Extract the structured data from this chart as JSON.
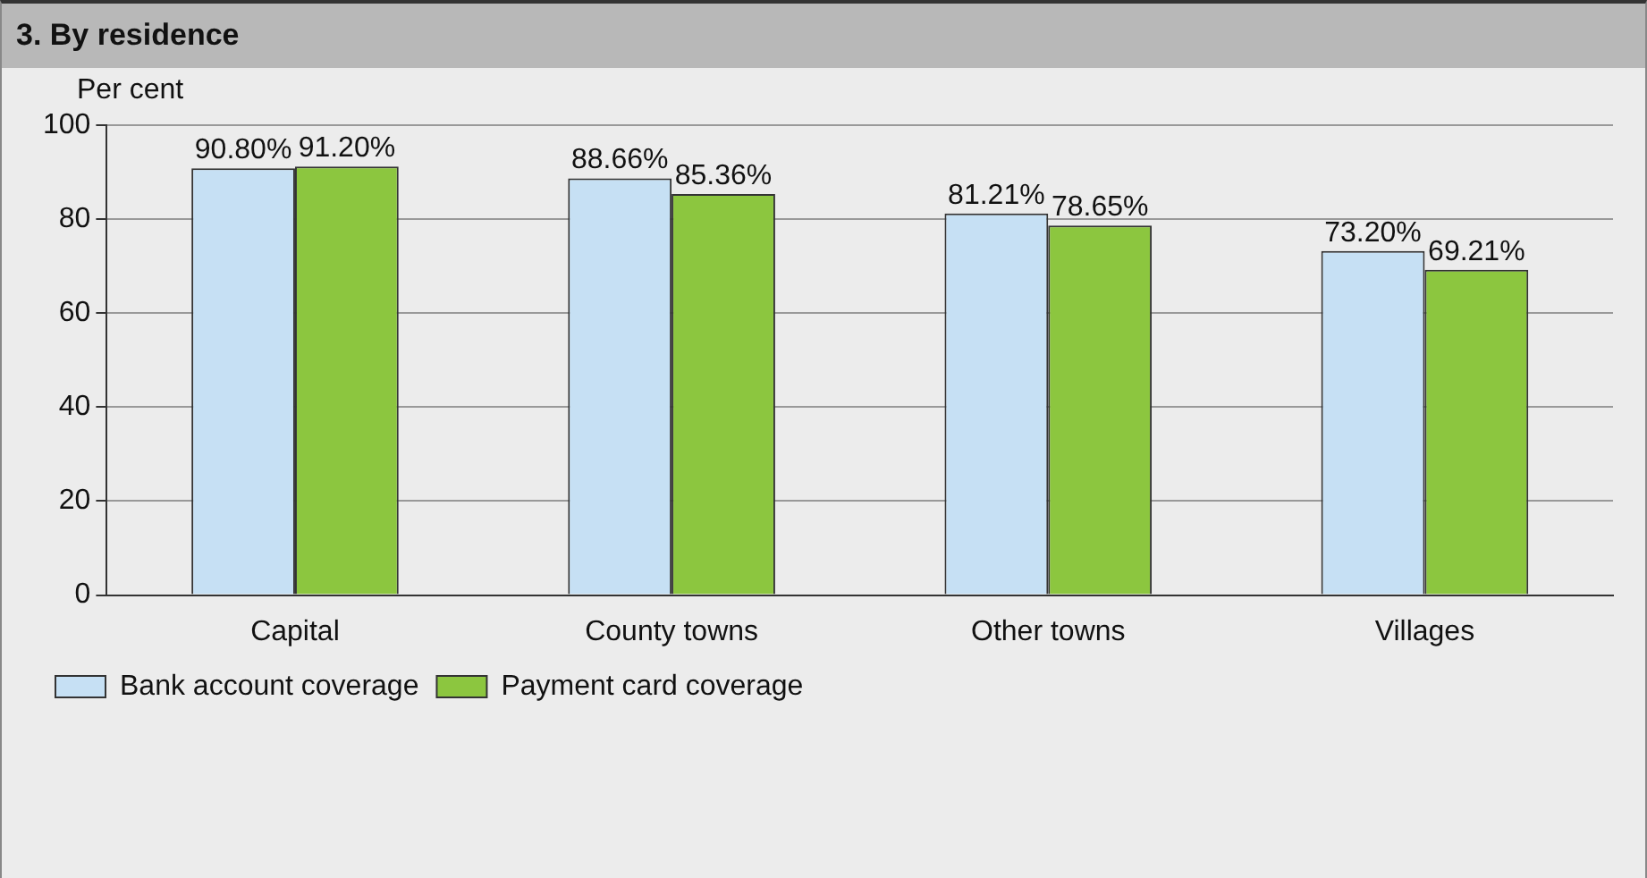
{
  "chart_data": {
    "type": "bar",
    "title": "3. By residence",
    "ylabel": "Per cent",
    "categories": [
      "Capital",
      "County towns",
      "Other towns",
      "Villages"
    ],
    "series": [
      {
        "name": "Bank account coverage",
        "color": "#c6e0f4",
        "values": [
          90.8,
          88.66,
          81.21,
          73.2
        ],
        "value_labels": [
          "90.80%",
          "88.66%",
          "81.21%",
          "73.20%"
        ]
      },
      {
        "name": "Payment card coverage",
        "color": "#8cc63f",
        "values": [
          91.2,
          85.36,
          78.65,
          69.21
        ],
        "value_labels": [
          "91.20%",
          "85.36%",
          "78.65%",
          "69.21%"
        ]
      }
    ],
    "ylim": [
      0,
      100
    ],
    "yticks": [
      0,
      20,
      40,
      60,
      80,
      100
    ],
    "grid": "y",
    "legend": "bottom left"
  }
}
